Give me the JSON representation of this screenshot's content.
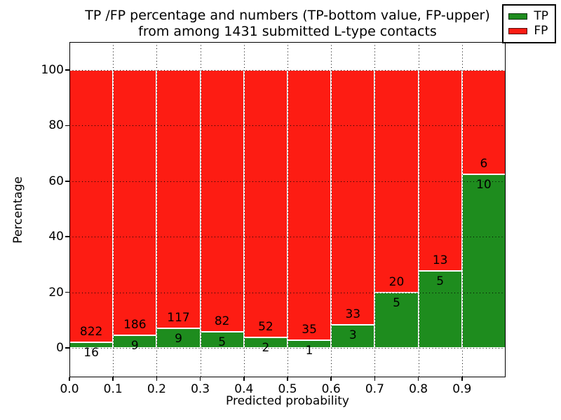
{
  "title": {
    "line1": "TP /FP percentage and numbers (TP-bottom value, FP-upper)",
    "line2": "from among 1431 submitted L-type contacts"
  },
  "chart_data": {
    "type": "bar",
    "stacked": true,
    "title": "TP /FP percentage and numbers (TP-bottom value, FP-upper) from among 1431 submitted L-type contacts",
    "xlabel": "Predicted probability",
    "ylabel": "Percentage",
    "xlim": [
      0.0,
      1.0
    ],
    "ylim": [
      -10.5,
      110.5
    ],
    "bin_width": 0.1,
    "categories": [
      "0.0-0.1",
      "0.1-0.2",
      "0.2-0.3",
      "0.3-0.4",
      "0.4-0.5",
      "0.5-0.6",
      "0.6-0.7",
      "0.7-0.8",
      "0.8-0.9",
      "0.9-1.0"
    ],
    "xticks": [
      "0.0",
      "0.1",
      "0.2",
      "0.3",
      "0.4",
      "0.5",
      "0.6",
      "0.7",
      "0.8",
      "0.9"
    ],
    "yticks": [
      0,
      20,
      40,
      60,
      80,
      100
    ],
    "grid_style": "dotted",
    "total_contacts": 1431,
    "series": [
      {
        "name": "TP",
        "color": "#1e8c1e",
        "values": [
          16,
          9,
          9,
          5,
          2,
          1,
          3,
          5,
          5,
          10
        ]
      },
      {
        "name": "FP",
        "color": "#fd1c13",
        "values": [
          822,
          186,
          117,
          82,
          52,
          35,
          33,
          20,
          13,
          6
        ]
      }
    ],
    "tp_percentages": [
      1.91,
      4.62,
      7.14,
      5.75,
      3.7,
      2.78,
      8.33,
      20.0,
      27.78,
      62.5
    ],
    "legend": {
      "position": "upper right",
      "entries": [
        "TP",
        "FP"
      ]
    }
  }
}
